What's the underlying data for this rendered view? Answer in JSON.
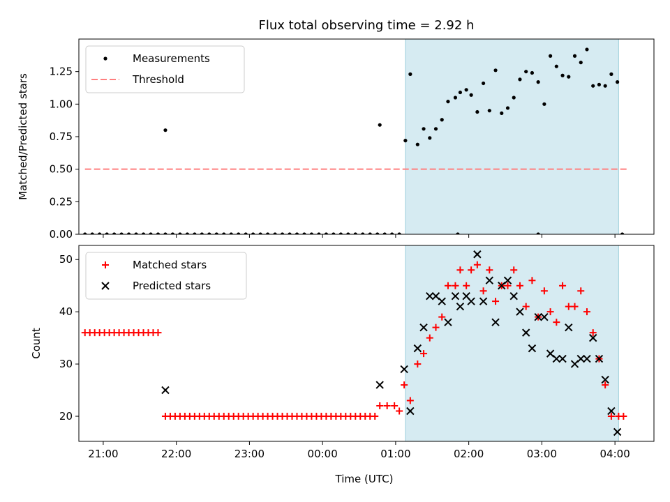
{
  "chart_data": [
    {
      "type": "scatter",
      "title": "Flux total observing time = 2.92 h",
      "xlabel": "",
      "ylabel": "Matched/Predicted stars",
      "xlim": [
        "20:40",
        "04:32"
      ],
      "ylim": [
        0,
        1.5
      ],
      "yticks": [
        "0.00",
        "0.25",
        "0.50",
        "0.75",
        "1.00",
        "1.25"
      ],
      "shaded_span": [
        "01:08",
        "04:03"
      ],
      "legend": {
        "placement": "upper-left",
        "entries": [
          "Measurements",
          "Threshold"
        ]
      },
      "series": [
        {
          "name": "Measurements",
          "color": "#000000",
          "marker": "dot",
          "x": [
            "20:45",
            "20:51",
            "20:57",
            "21:03",
            "21:09",
            "21:15",
            "21:21",
            "21:27",
            "21:33",
            "21:39",
            "21:45",
            "21:51",
            "21:57",
            "22:03",
            "22:09",
            "22:15",
            "22:21",
            "22:27",
            "22:33",
            "22:39",
            "22:45",
            "22:51",
            "22:57",
            "23:03",
            "23:09",
            "23:15",
            "23:21",
            "23:27",
            "23:33",
            "23:39",
            "23:45",
            "23:51",
            "23:57",
            "00:03",
            "00:09",
            "00:15",
            "00:21",
            "00:27",
            "00:33",
            "00:39",
            "00:45",
            "00:51",
            "00:57",
            "01:03",
            "01:51",
            "02:57",
            "04:06",
            "21:51",
            "00:47",
            "01:08",
            "01:12",
            "01:18",
            "01:23",
            "01:28",
            "01:33",
            "01:38",
            "01:43",
            "01:49",
            "01:53",
            "01:58",
            "02:02",
            "02:07",
            "02:12",
            "02:17",
            "02:22",
            "02:27",
            "02:32",
            "02:37",
            "02:42",
            "02:47",
            "02:52",
            "02:57",
            "03:02",
            "03:07",
            "03:12",
            "03:17",
            "03:22",
            "03:27",
            "03:32",
            "03:37",
            "03:42",
            "03:47",
            "03:52",
            "03:57",
            "04:02"
          ],
          "y": [
            0,
            0,
            0,
            0,
            0,
            0,
            0,
            0,
            0,
            0,
            0,
            0,
            0,
            0,
            0,
            0,
            0,
            0,
            0,
            0,
            0,
            0,
            0,
            0,
            0,
            0,
            0,
            0,
            0,
            0,
            0,
            0,
            0,
            0,
            0,
            0,
            0,
            0,
            0,
            0,
            0,
            0,
            0,
            0,
            0,
            0,
            0,
            0.8,
            0.84,
            0.72,
            1.23,
            0.69,
            0.81,
            0.74,
            0.81,
            0.88,
            1.02,
            1.05,
            1.09,
            1.11,
            1.07,
            0.94,
            1.16,
            0.95,
            1.26,
            0.93,
            0.97,
            1.05,
            1.19,
            1.25,
            1.24,
            1.17,
            1.0,
            1.37,
            1.29,
            1.22,
            1.21,
            1.37,
            1.32,
            1.42,
            1.14,
            1.15,
            1.14,
            1.23,
            1.17
          ]
        },
        {
          "name": "Threshold",
          "color": "#ff7f7f",
          "style": "dashed",
          "x": [
            "20:45",
            "04:10"
          ],
          "y": [
            0.5,
            0.5
          ]
        }
      ]
    },
    {
      "type": "scatter",
      "title": "",
      "xlabel": "Time (UTC)",
      "ylabel": "Count",
      "xlim": [
        "20:40",
        "04:32"
      ],
      "ylim": [
        15.2,
        52.7
      ],
      "xticks": [
        "21:00",
        "22:00",
        "23:00",
        "00:00",
        "01:00",
        "02:00",
        "03:00",
        "04:00"
      ],
      "yticks": [
        "20",
        "30",
        "40",
        "50"
      ],
      "shaded_span": [
        "01:08",
        "04:03"
      ],
      "legend": {
        "placement": "upper-left",
        "entries": [
          "Matched stars",
          "Predicted stars"
        ]
      },
      "series": [
        {
          "name": "Matched stars",
          "color": "#ff0000",
          "marker": "plus",
          "x": [
            "20:45",
            "20:49",
            "20:53",
            "20:57",
            "21:01",
            "21:05",
            "21:09",
            "21:13",
            "21:17",
            "21:21",
            "21:25",
            "21:29",
            "21:33",
            "21:37",
            "21:41",
            "21:45",
            "21:51",
            "21:55",
            "21:59",
            "22:03",
            "22:07",
            "22:11",
            "22:15",
            "22:19",
            "22:23",
            "22:27",
            "22:31",
            "22:35",
            "22:39",
            "22:43",
            "22:47",
            "22:51",
            "22:55",
            "22:59",
            "23:03",
            "23:07",
            "23:11",
            "23:15",
            "23:19",
            "23:23",
            "23:27",
            "23:31",
            "23:35",
            "23:39",
            "23:43",
            "23:47",
            "23:51",
            "23:55",
            "23:59",
            "00:03",
            "00:07",
            "00:11",
            "00:15",
            "00:19",
            "00:23",
            "00:27",
            "00:31",
            "00:35",
            "00:39",
            "00:43",
            "00:47",
            "00:53",
            "00:59",
            "01:03",
            "01:07",
            "01:12",
            "01:18",
            "01:23",
            "01:28",
            "01:33",
            "01:38",
            "01:43",
            "01:49",
            "01:53",
            "01:58",
            "02:02",
            "02:07",
            "02:12",
            "02:17",
            "02:22",
            "02:27",
            "02:32",
            "02:37",
            "02:42",
            "02:47",
            "02:52",
            "02:57",
            "03:02",
            "03:07",
            "03:12",
            "03:17",
            "03:22",
            "03:27",
            "03:32",
            "03:37",
            "03:42",
            "03:47",
            "03:52",
            "03:57",
            "04:03",
            "04:07"
          ],
          "y": [
            36,
            36,
            36,
            36,
            36,
            36,
            36,
            36,
            36,
            36,
            36,
            36,
            36,
            36,
            36,
            36,
            20,
            20,
            20,
            20,
            20,
            20,
            20,
            20,
            20,
            20,
            20,
            20,
            20,
            20,
            20,
            20,
            20,
            20,
            20,
            20,
            20,
            20,
            20,
            20,
            20,
            20,
            20,
            20,
            20,
            20,
            20,
            20,
            20,
            20,
            20,
            20,
            20,
            20,
            20,
            20,
            20,
            20,
            20,
            20,
            22,
            22,
            22,
            21,
            26,
            23,
            30,
            32,
            35,
            37,
            39,
            45,
            45,
            48,
            45,
            48,
            49,
            44,
            48,
            42,
            45,
            45,
            48,
            45,
            41,
            46,
            39,
            44,
            40,
            38,
            45,
            41,
            41,
            44,
            40,
            36,
            31,
            26,
            20,
            20,
            20
          ]
        },
        {
          "name": "Predicted stars",
          "color": "#000000",
          "marker": "x",
          "x": [
            "21:51",
            "00:47",
            "01:07",
            "01:12",
            "01:18",
            "01:23",
            "01:28",
            "01:33",
            "01:38",
            "01:43",
            "01:49",
            "01:53",
            "01:58",
            "02:02",
            "02:07",
            "02:12",
            "02:17",
            "02:22",
            "02:27",
            "02:32",
            "02:37",
            "02:42",
            "02:47",
            "02:52",
            "02:57",
            "03:02",
            "03:07",
            "03:12",
            "03:17",
            "03:22",
            "03:27",
            "03:32",
            "03:37",
            "03:42",
            "03:47",
            "03:52",
            "03:57",
            "04:02"
          ],
          "y": [
            25,
            26,
            29,
            21,
            33,
            37,
            43,
            43,
            42,
            38,
            43,
            41,
            43,
            42,
            51,
            42,
            46,
            38,
            45,
            46,
            43,
            40,
            36,
            33,
            39,
            39,
            32,
            31,
            31,
            37,
            30,
            31,
            31,
            35,
            31,
            27,
            21,
            17
          ]
        }
      ]
    }
  ]
}
